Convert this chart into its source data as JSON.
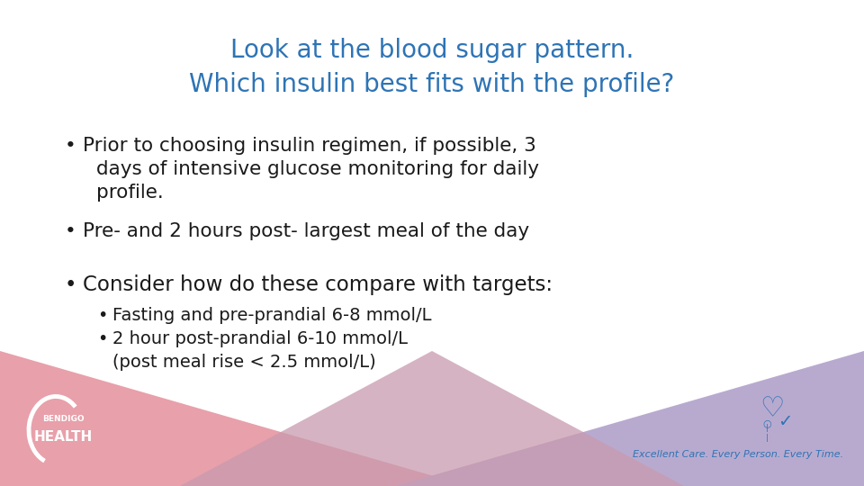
{
  "title_line1": "Look at the blood sugar pattern.",
  "title_line2": "Which insulin best fits with the profile?",
  "title_color": "#2E74B5",
  "bg_color": "#FFFFFF",
  "bullet1_line1": "Prior to choosing insulin regimen, if possible, 3",
  "bullet1_line2": "days of intensive glucose monitoring for daily",
  "bullet1_line3": "profile.",
  "bullet2": "Pre- and 2 hours post- largest meal of the day",
  "bullet3": "Consider how do these compare with targets:",
  "sub_bullet1": "Fasting and pre-prandial 6-8 mmol/L",
  "sub_bullet2": "2 hour post-prandial 6-10 mmol/L",
  "sub_bullet3": "(post meal rise < 2.5 mmol/L)",
  "text_color": "#1a1a1a",
  "footer_text": "Excellent Care. Every Person. Every Time.",
  "footer_color": "#2E74B5",
  "pink_color": "#E8A0AA",
  "purple_color": "#B8AACF",
  "mauve_color": "#C89AAE",
  "logo_text1": "BENDIGO",
  "logo_text2": "HEALTH"
}
